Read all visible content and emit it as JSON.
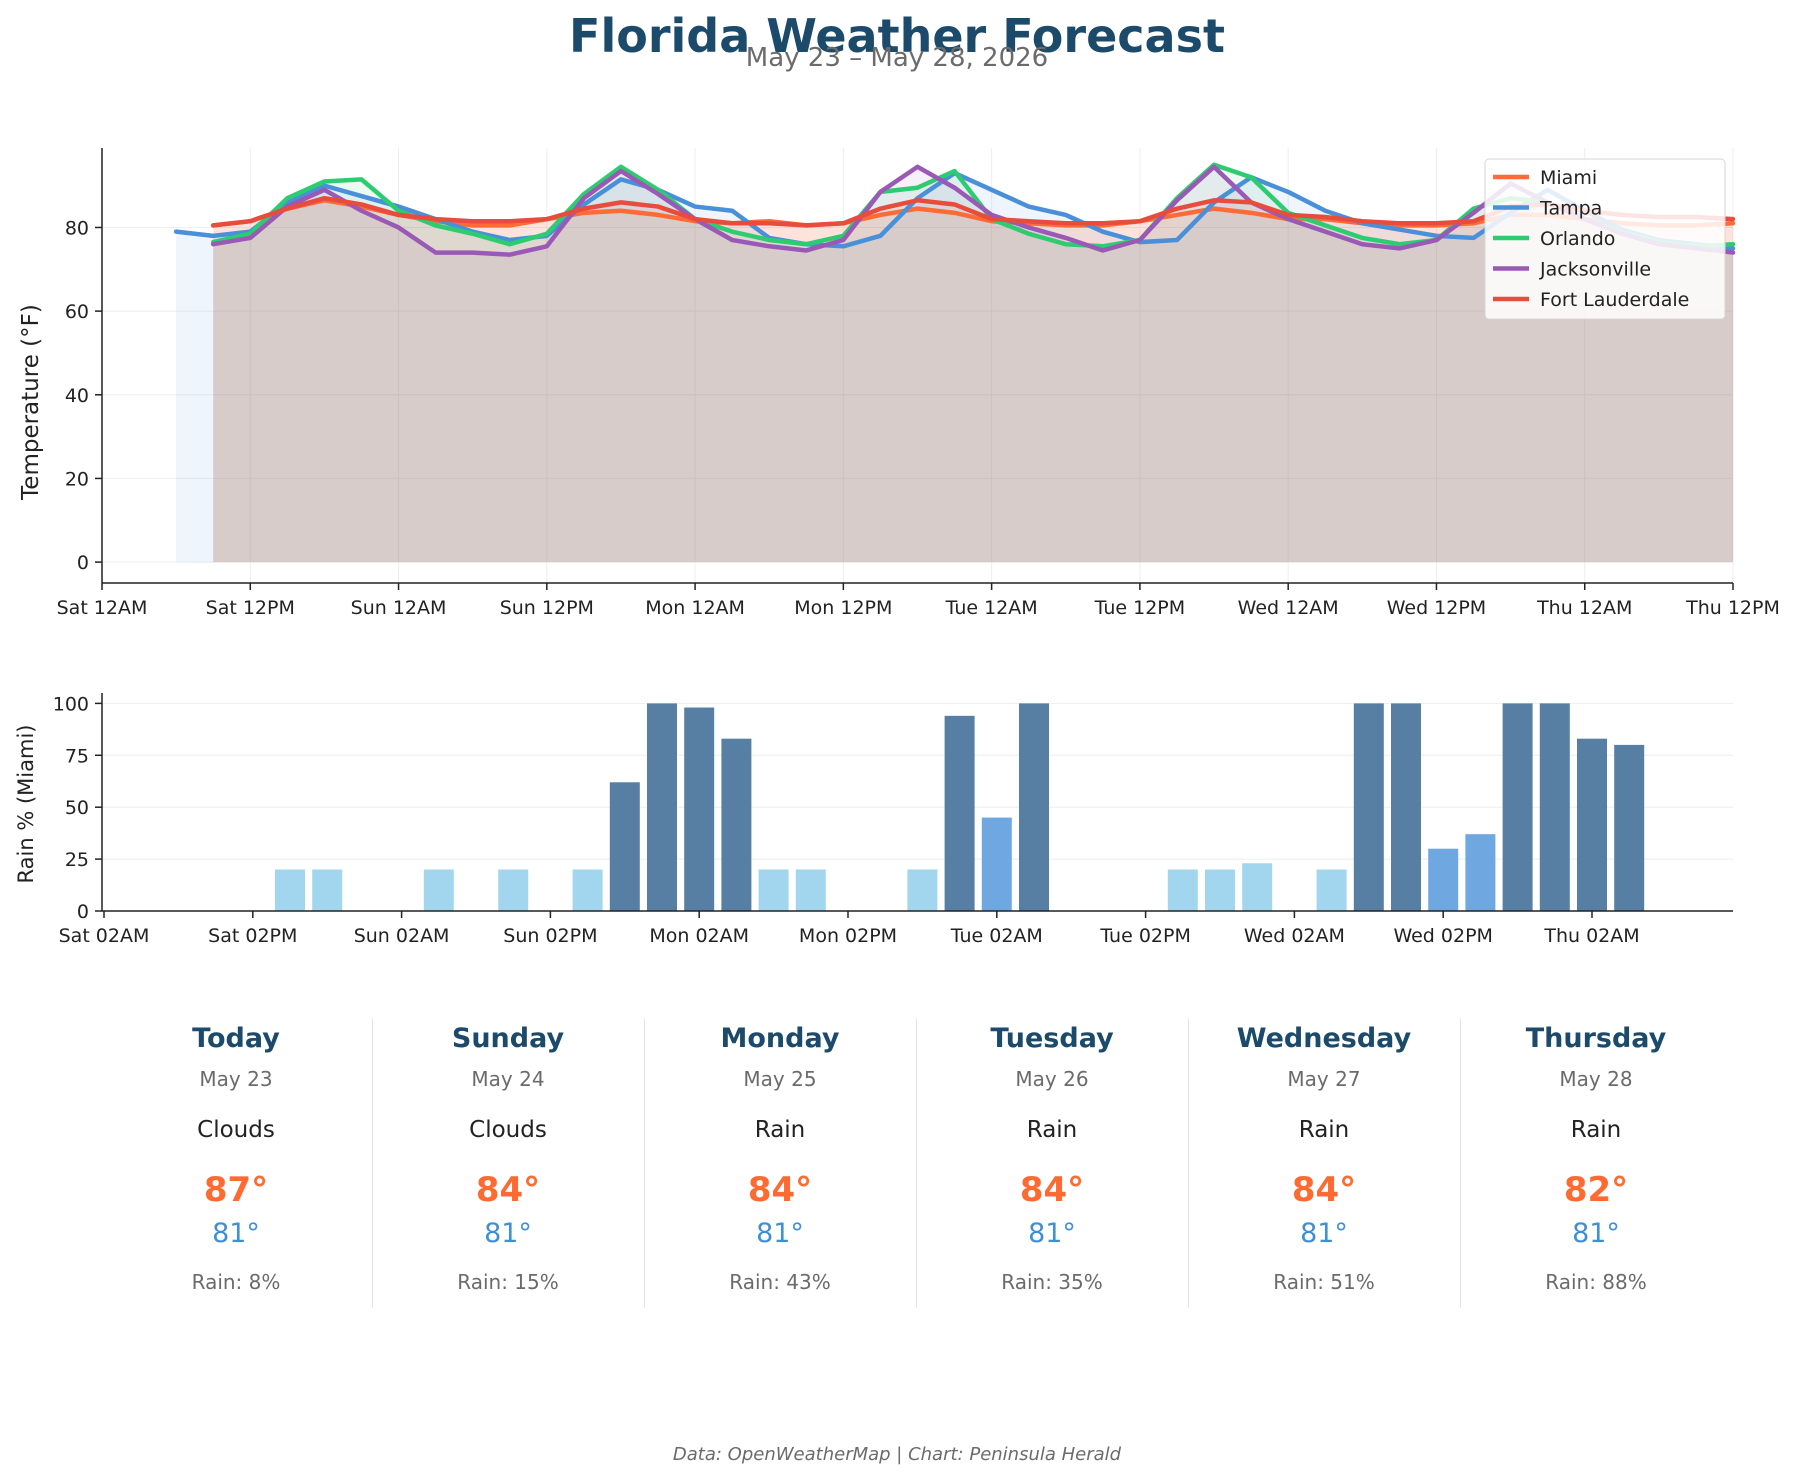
{
  "header": {
    "title": "Florida Weather Forecast",
    "subtitle": "May 23 – May 28, 2026"
  },
  "chart_data": [
    {
      "type": "line",
      "ylabel": "Temperature (°F)",
      "ylim": [
        -5,
        99
      ],
      "yticks": [
        0,
        20,
        40,
        60,
        80
      ],
      "xlim_hours": [
        0,
        132
      ],
      "x_ticks": [
        "Sat 12AM",
        "Sat 12PM",
        "Sun 12AM",
        "Sun 12PM",
        "Mon 12AM",
        "Mon 12PM",
        "Tue 12AM",
        "Tue 12PM",
        "Wed 12AM",
        "Wed 12PM",
        "Thu 12AM",
        "Thu 12PM"
      ],
      "area_fill": true,
      "grid": true,
      "legend_position": "top-right",
      "series": [
        {
          "name": "Miami",
          "color": "#ff6b35",
          "x": [
            9,
            12,
            15,
            18,
            21,
            24,
            27,
            30,
            33,
            36,
            39,
            42,
            45,
            48,
            51,
            54,
            57,
            60,
            63,
            66,
            69,
            72,
            75,
            78,
            81,
            84,
            87,
            90,
            93,
            96,
            99,
            102,
            105,
            108,
            111,
            114,
            117,
            120,
            123,
            126,
            129,
            132
          ],
          "y": [
            80.5,
            81.5,
            84.5,
            86.5,
            85,
            83,
            81.5,
            80.5,
            80.5,
            82,
            83.5,
            84,
            83,
            81.5,
            81,
            81.5,
            80.5,
            81,
            83,
            84.5,
            83.5,
            81.5,
            81,
            80.5,
            80.5,
            81.5,
            83,
            84.5,
            83.5,
            82,
            82,
            81,
            80.5,
            80.5,
            81,
            83,
            83,
            82,
            81,
            80.5,
            80.5,
            81
          ]
        },
        {
          "name": "Tampa",
          "color": "#4a90d9",
          "x": [
            6,
            9,
            12,
            15,
            18,
            21,
            24,
            27,
            30,
            33,
            36,
            39,
            42,
            45,
            48,
            51,
            54,
            57,
            60,
            63,
            66,
            69,
            72,
            75,
            78,
            81,
            84,
            87,
            90,
            93,
            96,
            99,
            102,
            105,
            108,
            111,
            114,
            117,
            120,
            123,
            126,
            129,
            132
          ],
          "y": [
            79,
            78,
            79,
            86,
            90,
            87.5,
            85,
            82,
            79,
            77,
            78,
            85.5,
            91.5,
            89,
            85,
            84,
            77.5,
            76,
            75.5,
            78,
            87,
            93,
            89,
            85,
            83,
            79,
            76.5,
            77,
            86,
            92,
            88.5,
            84,
            81,
            79.5,
            78,
            77.5,
            83.5,
            89,
            84,
            79.5,
            77,
            76,
            75
          ]
        },
        {
          "name": "Orlando",
          "color": "#2ecc71",
          "x": [
            9,
            12,
            15,
            18,
            21,
            24,
            27,
            30,
            33,
            36,
            39,
            42,
            45,
            48,
            51,
            54,
            57,
            60,
            63,
            66,
            69,
            72,
            75,
            78,
            81,
            84,
            87,
            90,
            93,
            96,
            99,
            102,
            105,
            108,
            111,
            114,
            117,
            120,
            123,
            126,
            129,
            132
          ],
          "y": [
            76.5,
            78.5,
            87,
            91,
            91.5,
            84,
            80.5,
            78.5,
            76,
            78.5,
            88,
            94.5,
            89,
            82,
            79,
            77,
            76,
            78,
            88.5,
            89.5,
            93.5,
            82,
            78.5,
            76,
            75.5,
            77,
            87,
            95,
            92,
            83.5,
            80.5,
            77.5,
            76,
            77,
            84.5,
            87,
            86,
            82,
            79,
            76.5,
            75.5,
            76
          ]
        },
        {
          "name": "Jacksonville",
          "color": "#9b59b6",
          "x": [
            9,
            12,
            15,
            18,
            21,
            24,
            27,
            30,
            33,
            36,
            39,
            42,
            45,
            48,
            51,
            54,
            57,
            60,
            63,
            66,
            69,
            72,
            75,
            78,
            81,
            84,
            87,
            90,
            93,
            96,
            99,
            102,
            105,
            108,
            111,
            114,
            117,
            120,
            123,
            126,
            129,
            132
          ],
          "y": [
            76,
            77.5,
            85,
            89,
            84,
            80,
            74,
            74,
            73.5,
            75.5,
            87,
            93.5,
            88,
            82,
            77,
            75.5,
            74.5,
            77,
            88.5,
            94.5,
            89.5,
            83,
            80,
            77.5,
            74.5,
            77,
            86.5,
            94.5,
            86,
            82,
            79,
            76,
            75,
            77,
            83.5,
            90.5,
            86,
            82,
            78.5,
            76,
            75,
            74
          ]
        },
        {
          "name": "Fort Lauderdale",
          "color": "#e74c3c",
          "x": [
            9,
            12,
            15,
            18,
            21,
            24,
            27,
            30,
            33,
            36,
            39,
            42,
            45,
            48,
            51,
            54,
            57,
            60,
            63,
            66,
            69,
            72,
            75,
            78,
            81,
            84,
            87,
            90,
            93,
            96,
            99,
            102,
            105,
            108,
            111,
            114,
            117,
            120,
            123,
            126,
            129,
            132
          ],
          "y": [
            80.5,
            81.5,
            84.5,
            87,
            85.5,
            83,
            82,
            81.5,
            81.5,
            82,
            84.5,
            86,
            85,
            82,
            81,
            81,
            80.5,
            81,
            84.5,
            86.5,
            85.5,
            82,
            81.5,
            81,
            81,
            81.5,
            84.5,
            86.5,
            86,
            83,
            82.5,
            81.5,
            81,
            81,
            81.5,
            85,
            85.5,
            84,
            83,
            82.5,
            82.5,
            82
          ]
        }
      ]
    },
    {
      "type": "bar",
      "ylabel": "Rain % (Miami)",
      "ylim": [
        0,
        105
      ],
      "yticks": [
        0,
        25,
        50,
        75,
        100
      ],
      "x_ticks": [
        "Sat 02AM",
        "Sat 02PM",
        "Sun 02AM",
        "Sun 02PM",
        "Mon 02AM",
        "Mon 02PM",
        "Tue 02AM",
        "Tue 02PM",
        "Wed 02AM",
        "Wed 02PM",
        "Thu 02AM"
      ],
      "x_hours": [
        8,
        11,
        14,
        17,
        20,
        23,
        26,
        29,
        32,
        35,
        38,
        41,
        44,
        47,
        50,
        53,
        56,
        59,
        62,
        65,
        68,
        71,
        74,
        77,
        80,
        83,
        86,
        89,
        92,
        95,
        98,
        101,
        104,
        107,
        110,
        113,
        116,
        119,
        122,
        125,
        128,
        131
      ],
      "values": [
        0,
        0,
        0,
        0,
        0,
        20,
        20,
        0,
        0,
        20,
        0,
        20,
        0,
        20,
        62,
        100,
        98,
        83,
        20,
        20,
        0,
        0,
        20,
        94,
        45,
        100,
        0,
        0,
        0,
        20,
        20,
        23,
        0,
        20,
        100,
        100,
        30,
        37,
        100,
        100,
        83,
        80
      ],
      "colors": {
        "light": "#a1d6ee",
        "medium": "#6fa8e0",
        "heavy": "#577fa3"
      }
    }
  ],
  "days": [
    {
      "name": "Today",
      "date": "May 23",
      "condition": "Clouds",
      "high": "87°",
      "low": "81°",
      "rain": "Rain: 8%"
    },
    {
      "name": "Sunday",
      "date": "May 24",
      "condition": "Clouds",
      "high": "84°",
      "low": "81°",
      "rain": "Rain: 15%"
    },
    {
      "name": "Monday",
      "date": "May 25",
      "condition": "Rain",
      "high": "84°",
      "low": "81°",
      "rain": "Rain: 43%"
    },
    {
      "name": "Tuesday",
      "date": "May 26",
      "condition": "Rain",
      "high": "84°",
      "low": "81°",
      "rain": "Rain: 35%"
    },
    {
      "name": "Wednesday",
      "date": "May 27",
      "condition": "Rain",
      "high": "84°",
      "low": "81°",
      "rain": "Rain: 51%"
    },
    {
      "name": "Thursday",
      "date": "May 28",
      "condition": "Rain",
      "high": "82°",
      "low": "81°",
      "rain": "Rain: 88%"
    }
  ],
  "footer": "Data: OpenWeatherMap | Chart: Peninsula Herald"
}
